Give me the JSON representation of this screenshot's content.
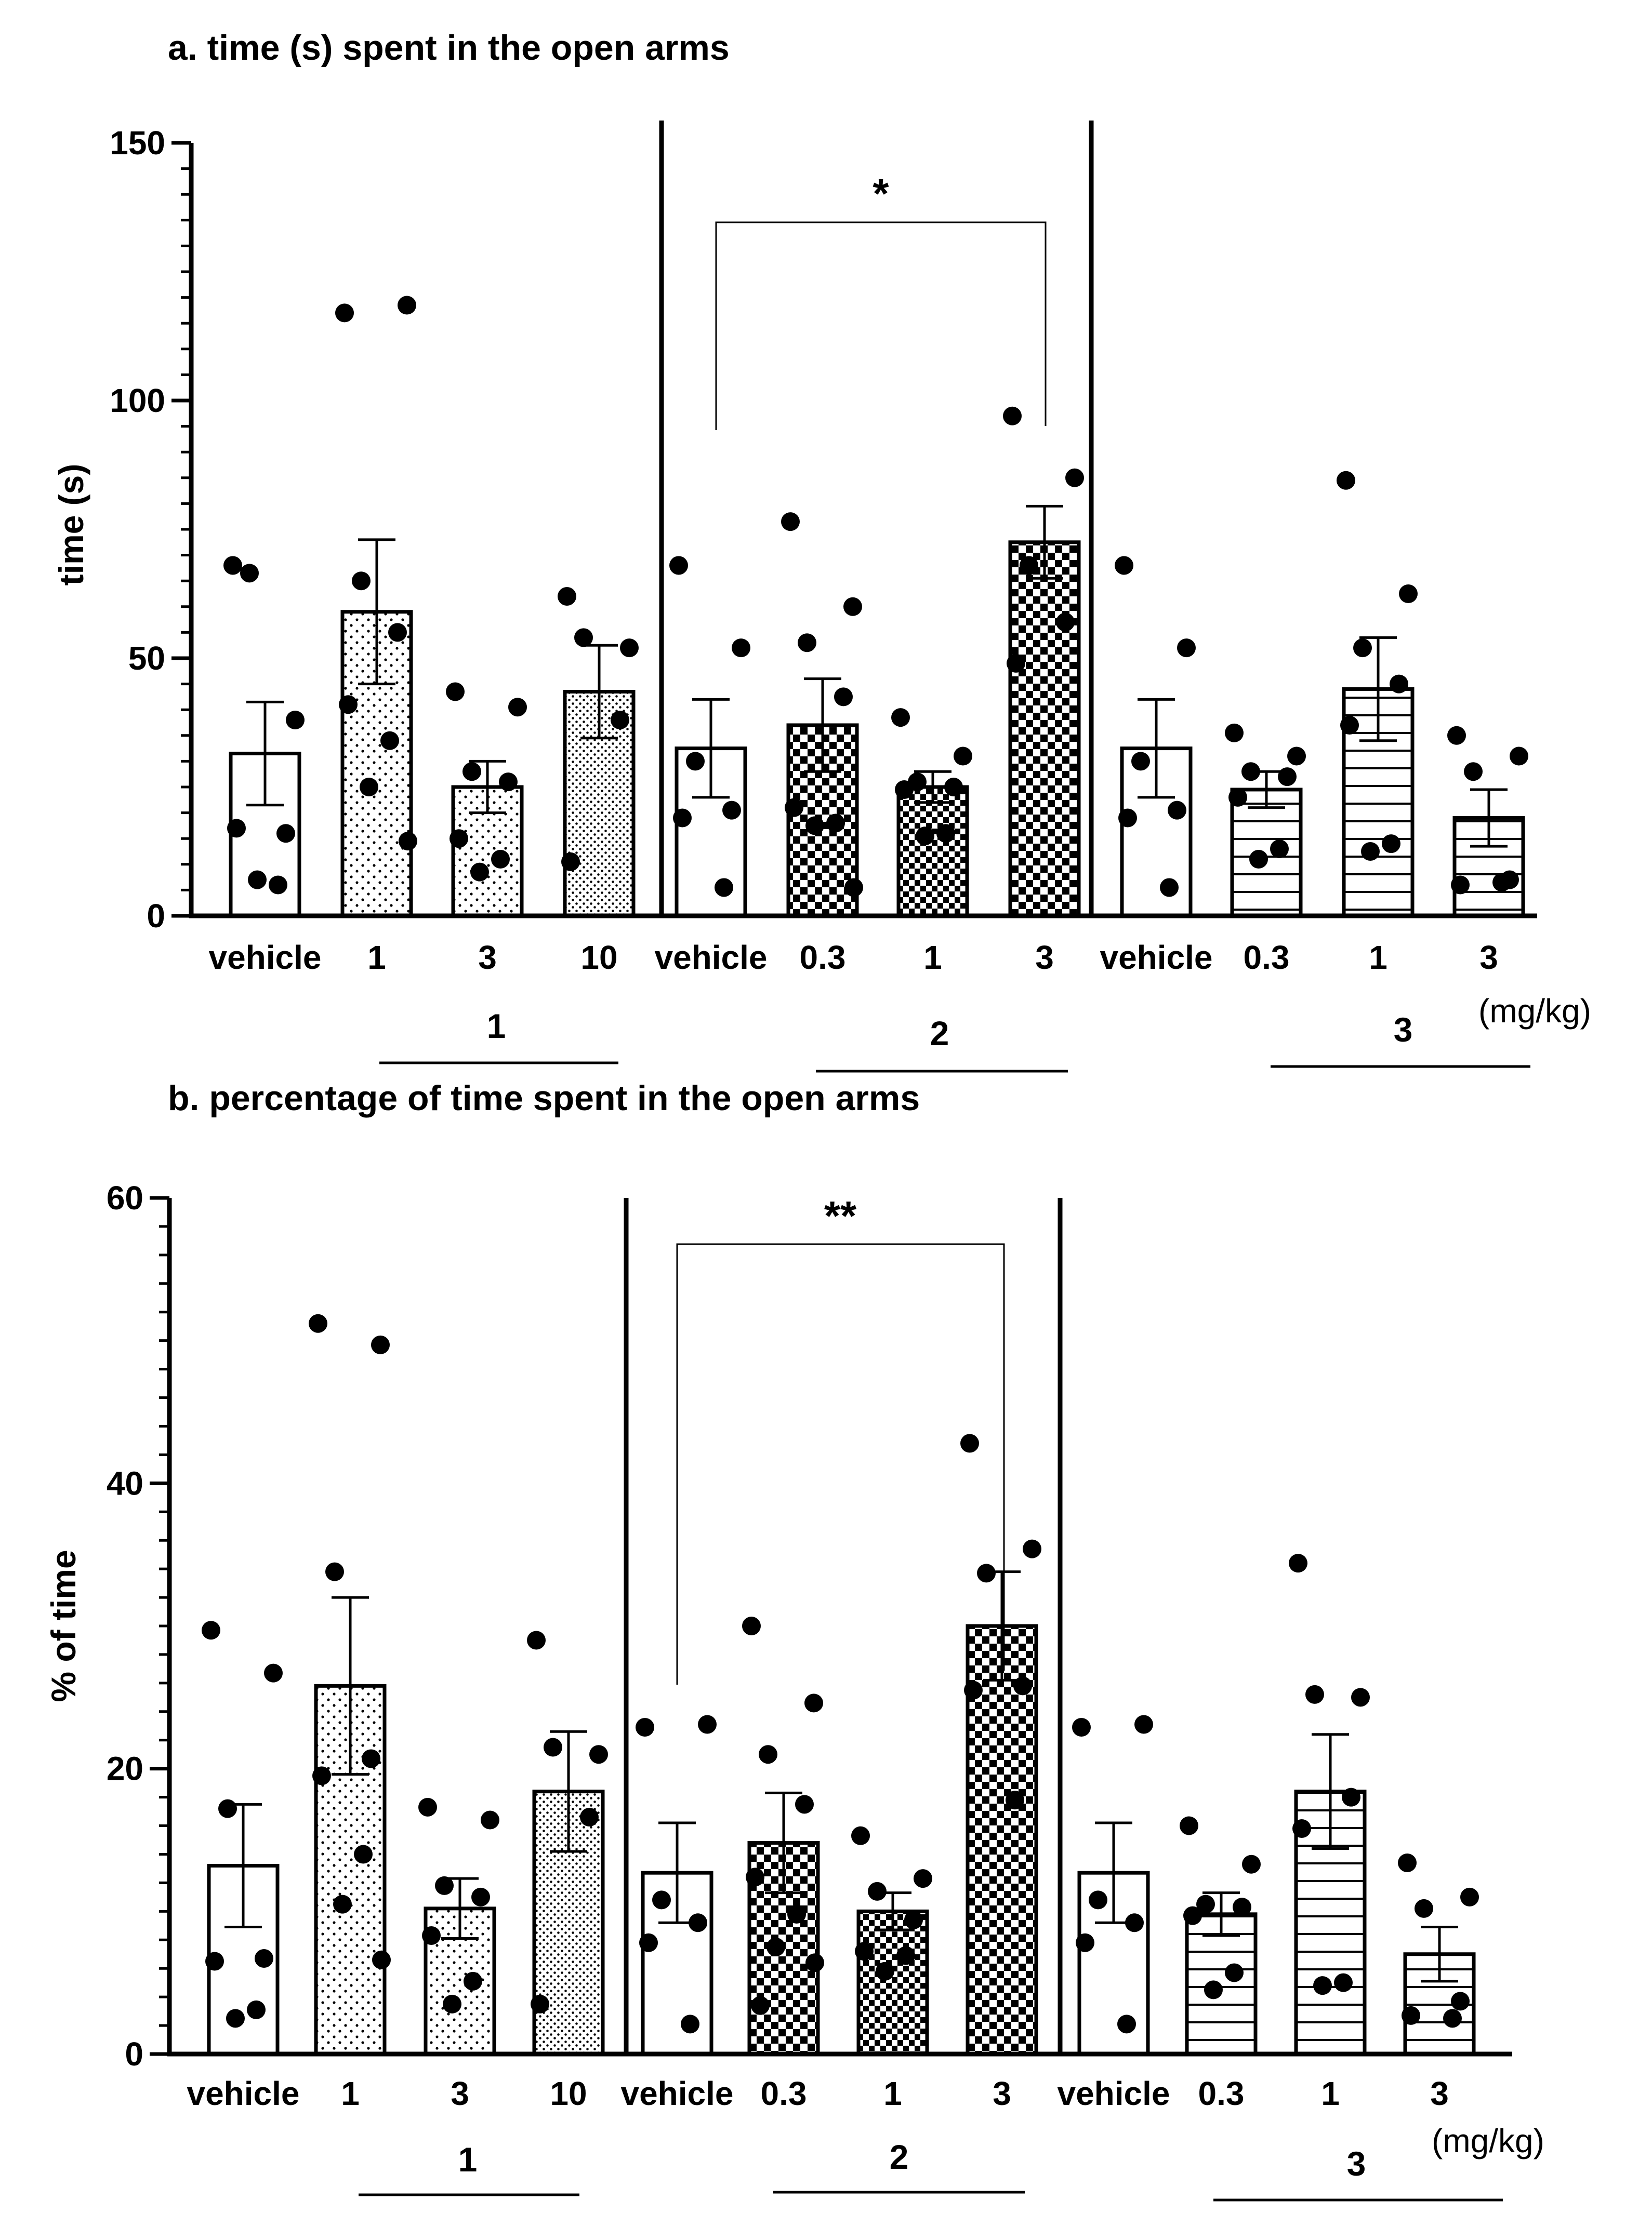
{
  "chart_data": [
    {
      "type": "bar",
      "panel": "a",
      "title": "a. time (s) spent in the open arms",
      "ylabel": "time (s)",
      "xlabel": "",
      "ylim": [
        0,
        150
      ],
      "yticks": [
        0,
        50,
        100,
        150
      ],
      "unit_label": "(mg/kg)",
      "groups": [
        {
          "label": "1",
          "categories": [
            "vehicle",
            "1",
            "3",
            "10"
          ]
        },
        {
          "label": "2",
          "categories": [
            "vehicle",
            "0.3",
            "1",
            "3"
          ]
        },
        {
          "label": "3",
          "categories": [
            "vehicle",
            "0.3",
            "1",
            "3"
          ]
        }
      ],
      "series": [
        {
          "group": "1",
          "dose": "vehicle",
          "pattern": "blank",
          "mean": 31.5,
          "sem": 10.0,
          "points": [
            68,
            38,
            66.5,
            16,
            17,
            6,
            7
          ]
        },
        {
          "group": "1",
          "dose": "1",
          "pattern": "dots-sparse",
          "mean": 59,
          "sem": 14,
          "points": [
            117,
            118.5,
            65,
            55,
            41,
            34,
            25,
            14.5
          ]
        },
        {
          "group": "1",
          "dose": "3",
          "pattern": "dots-sparse",
          "mean": 25,
          "sem": 5,
          "points": [
            43.5,
            40.5,
            28,
            26,
            15,
            11,
            8.5
          ]
        },
        {
          "group": "1",
          "dose": "10",
          "pattern": "dots-dense",
          "mean": 43.5,
          "sem": 9,
          "points": [
            62,
            52,
            54,
            38,
            10.5
          ]
        },
        {
          "group": "2",
          "dose": "vehicle",
          "pattern": "blank",
          "mean": 32.5,
          "sem": 9.5,
          "points": [
            68,
            52,
            30,
            20.5,
            19,
            5.5
          ]
        },
        {
          "group": "2",
          "dose": "0.3",
          "pattern": "checker",
          "mean": 37,
          "sem": 9,
          "points": [
            76.5,
            60,
            53,
            42.5,
            21,
            18,
            17.5,
            5.5
          ]
        },
        {
          "group": "2",
          "dose": "1",
          "pattern": "checker-fine",
          "mean": 25,
          "sem": 3,
          "points": [
            38.5,
            31,
            26,
            25,
            24.5,
            16,
            15.5
          ]
        },
        {
          "group": "2",
          "dose": "3",
          "pattern": "checker",
          "mean": 72.5,
          "sem": 7,
          "points": [
            97,
            85,
            68,
            57,
            49
          ]
        },
        {
          "group": "3",
          "dose": "vehicle",
          "pattern": "blank",
          "mean": 32.5,
          "sem": 9.5,
          "points": [
            68,
            52,
            30,
            20.5,
            19,
            5.5
          ]
        },
        {
          "group": "3",
          "dose": "0.3",
          "pattern": "hlines",
          "mean": 24.5,
          "sem": 3.5,
          "points": [
            35.5,
            31,
            28,
            27,
            23,
            13,
            11
          ]
        },
        {
          "group": "3",
          "dose": "1",
          "pattern": "hlines",
          "mean": 44,
          "sem": 10,
          "points": [
            84.5,
            62.5,
            52,
            45,
            37,
            14,
            12.5
          ]
        },
        {
          "group": "3",
          "dose": "3",
          "pattern": "hlines",
          "mean": 19,
          "sem": 5.5,
          "points": [
            35,
            31,
            28,
            7,
            6,
            6.5
          ]
        }
      ],
      "significance": [
        {
          "from": "2-vehicle",
          "to": "2-3",
          "label": "*"
        }
      ]
    },
    {
      "type": "bar",
      "panel": "b",
      "title": "b. percentage of time spent in the open arms",
      "ylabel": "% of time",
      "xlabel": "",
      "ylim": [
        0,
        60
      ],
      "yticks": [
        0,
        20,
        40,
        60
      ],
      "unit_label": "(mg/kg)",
      "groups": [
        {
          "label": "1",
          "categories": [
            "vehicle",
            "1",
            "3",
            "10"
          ]
        },
        {
          "label": "2",
          "categories": [
            "vehicle",
            "0.3",
            "1",
            "3"
          ]
        },
        {
          "label": "3",
          "categories": [
            "vehicle",
            "0.3",
            "1",
            "3"
          ]
        }
      ],
      "series": [
        {
          "group": "1",
          "dose": "vehicle",
          "pattern": "blank",
          "mean": 13.2,
          "sem": 4.3,
          "points": [
            29.7,
            26.7,
            17.2,
            6.7,
            6.5,
            3.1,
            2.5
          ]
        },
        {
          "group": "1",
          "dose": "1",
          "pattern": "dots-sparse",
          "mean": 25.8,
          "sem": 6.2,
          "points": [
            51.2,
            49.7,
            33.8,
            20.7,
            19.5,
            14,
            10.5,
            6.6
          ]
        },
        {
          "group": "1",
          "dose": "3",
          "pattern": "dots-sparse",
          "mean": 10.2,
          "sem": 2.1,
          "points": [
            17.3,
            16.4,
            11.8,
            11,
            8.3,
            5.1,
            3.5
          ]
        },
        {
          "group": "1",
          "dose": "10",
          "pattern": "dots-dense",
          "mean": 18.4,
          "sem": 4.2,
          "points": [
            29,
            21,
            21.5,
            16.6,
            3.5
          ]
        },
        {
          "group": "2",
          "dose": "vehicle",
          "pattern": "blank",
          "mean": 12.7,
          "sem": 3.5,
          "points": [
            22.9,
            23.1,
            10.8,
            9.2,
            7.8,
            2.1
          ]
        },
        {
          "group": "2",
          "dose": "0.3",
          "pattern": "checker",
          "mean": 14.8,
          "sem": 3.5,
          "points": [
            30,
            24.6,
            21,
            17.5,
            12.4,
            9.8,
            7.5,
            6.4,
            3.4
          ]
        },
        {
          "group": "2",
          "dose": "1",
          "pattern": "checker-fine",
          "mean": 10,
          "sem": 1.3,
          "points": [
            15.3,
            12.3,
            11.4,
            9.4,
            7.2,
            6.9,
            5.8
          ]
        },
        {
          "group": "2",
          "dose": "3",
          "pattern": "checker",
          "mean": 30,
          "sem": 3.8,
          "points": [
            42.8,
            35.4,
            33.7,
            25.8,
            25.5,
            17.8
          ]
        },
        {
          "group": "3",
          "dose": "vehicle",
          "pattern": "blank",
          "mean": 12.7,
          "sem": 3.5,
          "points": [
            22.9,
            23.1,
            10.8,
            9.2,
            7.8,
            2.1
          ]
        },
        {
          "group": "3",
          "dose": "0.3",
          "pattern": "hlines",
          "mean": 9.8,
          "sem": 1.5,
          "points": [
            16,
            13.3,
            10.5,
            10.3,
            9.7,
            5.7,
            4.5
          ]
        },
        {
          "group": "3",
          "dose": "1",
          "pattern": "hlines",
          "mean": 18.4,
          "sem": 4,
          "points": [
            34.4,
            25,
            25.2,
            18,
            15.8,
            5,
            4.8
          ]
        },
        {
          "group": "3",
          "dose": "3",
          "pattern": "hlines",
          "mean": 7,
          "sem": 1.9,
          "points": [
            13.4,
            11,
            10.2,
            3.7,
            2.7,
            2.5
          ]
        }
      ],
      "significance": [
        {
          "from": "2-vehicle",
          "to": "2-3",
          "label": "**"
        }
      ]
    }
  ]
}
